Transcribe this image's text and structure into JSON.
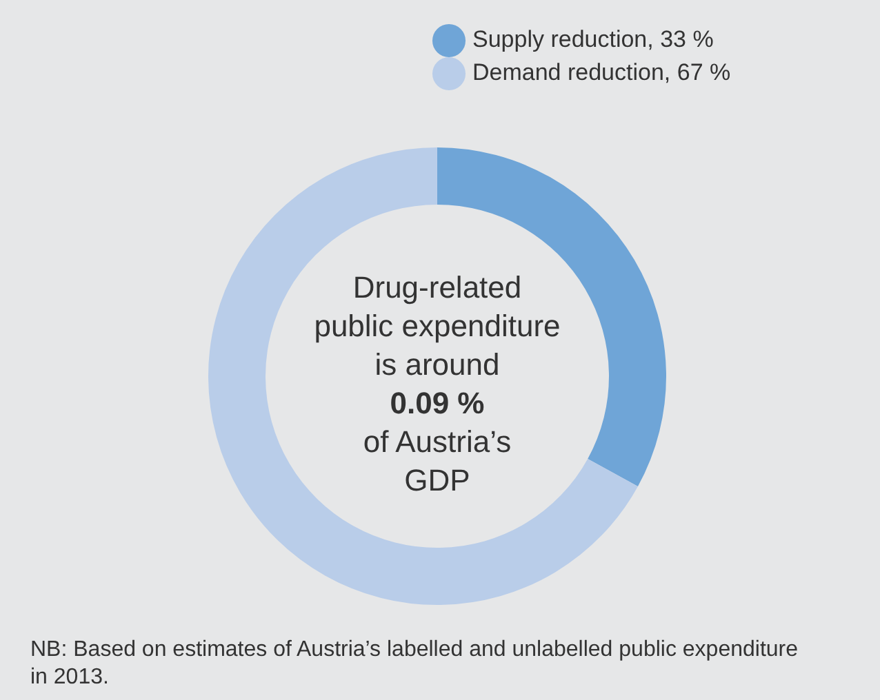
{
  "chart_data": {
    "type": "donut",
    "categories": [
      "Supply reduction, 33 %",
      "Demand reduction, 67 %"
    ],
    "values": [
      33,
      67
    ],
    "colors": [
      "#6fa5d7",
      "#b9cde9"
    ],
    "legend": "top right",
    "annotations": [
      "Drug-related public expenditure is around",
      "0.09 %",
      "of Austria’s GDP",
      "NB: Based on estimates of Austria’s labelled and unlabelled public expenditure in 2013."
    ]
  }
}
